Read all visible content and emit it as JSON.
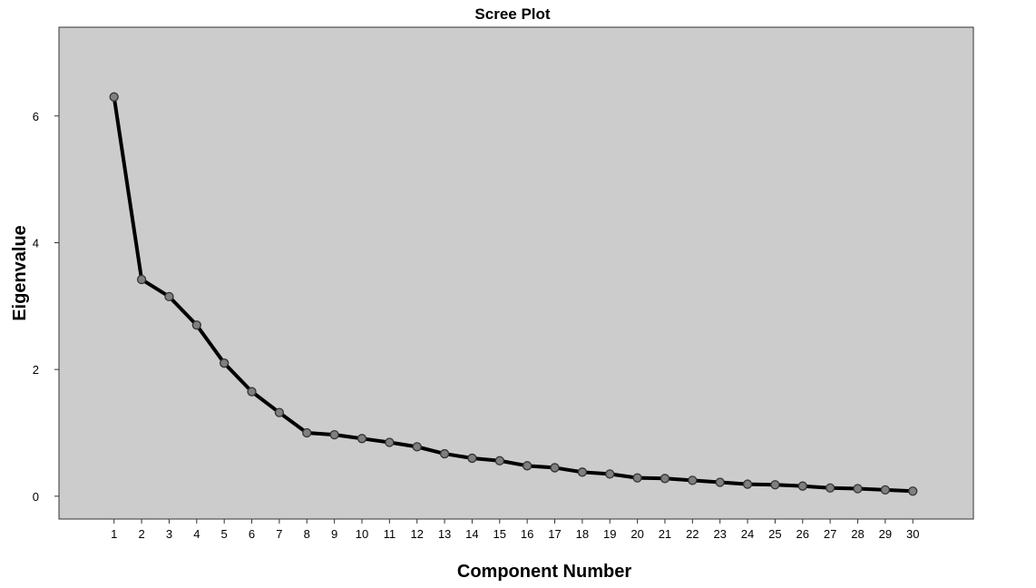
{
  "chart_data": {
    "type": "line",
    "title": "Scree Plot",
    "xlabel": "Component Number",
    "ylabel": "Eigenvalue",
    "x": [
      1,
      2,
      3,
      4,
      5,
      6,
      7,
      8,
      9,
      10,
      11,
      12,
      13,
      14,
      15,
      16,
      17,
      18,
      19,
      20,
      21,
      22,
      23,
      24,
      25,
      26,
      27,
      28,
      29,
      30
    ],
    "series": [
      {
        "values": [
          6.3,
          3.42,
          3.15,
          2.7,
          2.1,
          1.65,
          1.32,
          1.0,
          0.97,
          0.91,
          0.85,
          0.78,
          0.67,
          0.6,
          0.56,
          0.48,
          0.45,
          0.38,
          0.35,
          0.29,
          0.28,
          0.25,
          0.22,
          0.19,
          0.18,
          0.16,
          0.13,
          0.12,
          0.1,
          0.08
        ]
      }
    ],
    "yticks": [
      0,
      2,
      4,
      6
    ],
    "xlim": [
      -1.0,
      32.2
    ],
    "ylim": [
      -0.36,
      7.4
    ],
    "grid": false,
    "colors": {
      "plot_background": "#cccccc",
      "line": "#000000",
      "marker_fill": "#7f7f7f",
      "marker_stroke": "#333333"
    }
  }
}
